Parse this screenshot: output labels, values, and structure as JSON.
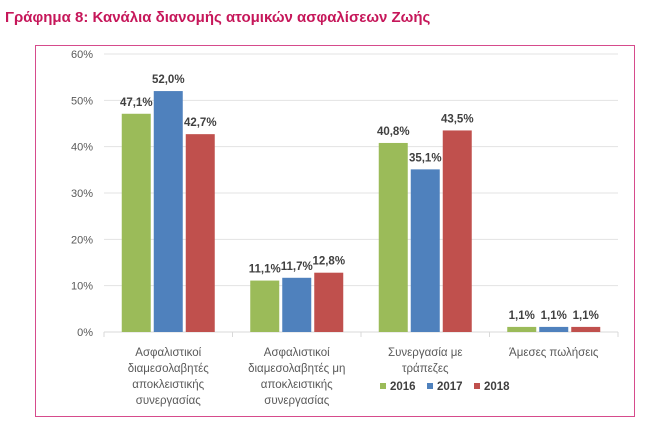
{
  "title": "Γράφημα 8: Κανάλια διανομής ατομικών ασφαλίσεων Ζωής",
  "colors": {
    "title": "#c6175a",
    "frame": "#d64b8c"
  },
  "chart_data": {
    "type": "bar",
    "title": "Γράφημα 8: Κανάλια διανομής ατομικών ασφαλίσεων Ζωής",
    "xlabel": "",
    "ylabel": "",
    "ylim": [
      0,
      60
    ],
    "yticks": [
      0,
      10,
      20,
      30,
      40,
      50,
      60
    ],
    "ytick_labels": [
      "0%",
      "10%",
      "20%",
      "30%",
      "40%",
      "50%",
      "60%"
    ],
    "grid": true,
    "legend_position": "bottom-right",
    "categories": [
      [
        "Ασφαλιστικοί",
        "διαμεσολαβητές",
        "αποκλειστικής",
        "συνεργασίας"
      ],
      [
        "Ασφαλιστικοί",
        "διαμεσολαβητές μη",
        "αποκλειστικής",
        "συνεργασίας"
      ],
      [
        "Συνεργασία με",
        "τράπεζες"
      ],
      [
        "Άμεσες πωλήσεις"
      ]
    ],
    "series": [
      {
        "name": "2016",
        "color": "#9bbb59",
        "values": [
          47.1,
          11.1,
          40.8,
          1.1
        ],
        "labels": [
          "47,1%",
          "11,1%",
          "40,8%",
          "1,1%"
        ]
      },
      {
        "name": "2017",
        "color": "#4f81bd",
        "values": [
          52.0,
          11.7,
          35.1,
          1.1
        ],
        "labels": [
          "52,0%",
          "11,7%",
          "35,1%",
          "1,1%"
        ]
      },
      {
        "name": "2018",
        "color": "#c0504d",
        "values": [
          42.7,
          12.8,
          43.5,
          1.1
        ],
        "labels": [
          "42,7%",
          "12,8%",
          "43,5%",
          "1,1%"
        ]
      }
    ]
  }
}
